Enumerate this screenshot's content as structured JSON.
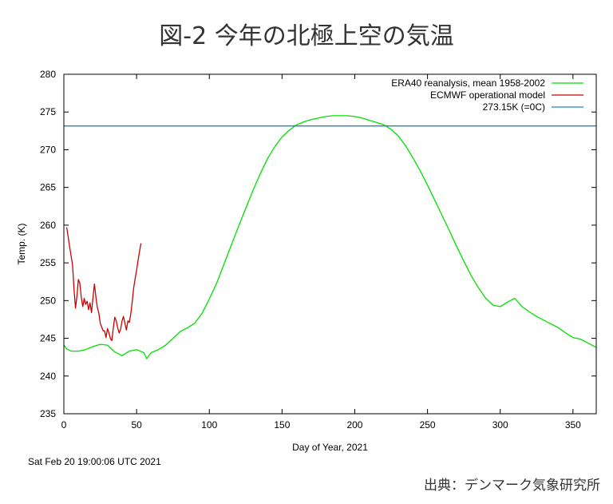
{
  "page": {
    "title": "図-2 今年の北極上空の気温",
    "timestamp": "Sat Feb 20 19:00:06 UTC 2021",
    "source": "出典：デンマーク気象研究所"
  },
  "chart_data": {
    "type": "line",
    "title": "図-2 今年の北極上空の気温",
    "xlabel": "Day of Year, 2021",
    "ylabel": "Temp. (K)",
    "xlim": [
      0,
      366
    ],
    "ylim": [
      235,
      280
    ],
    "xticks": [
      0,
      50,
      100,
      150,
      200,
      250,
      300,
      350
    ],
    "yticks": [
      235,
      240,
      245,
      250,
      255,
      260,
      265,
      270,
      275,
      280
    ],
    "legend_position": "top-right",
    "grid": false,
    "series": [
      {
        "name": "ERA40 reanalysis, mean 1958-2002",
        "color": "#00e000",
        "x": [
          0,
          2,
          5,
          10,
          15,
          20,
          25,
          30,
          35,
          40,
          45,
          50,
          55,
          57,
          60,
          65,
          70,
          75,
          80,
          85,
          90,
          95,
          100,
          105,
          110,
          115,
          120,
          125,
          130,
          135,
          140,
          145,
          150,
          155,
          160,
          165,
          170,
          175,
          180,
          185,
          190,
          195,
          200,
          205,
          210,
          215,
          220,
          225,
          230,
          235,
          240,
          245,
          250,
          255,
          260,
          265,
          270,
          275,
          280,
          285,
          290,
          295,
          300,
          305,
          310,
          315,
          320,
          325,
          330,
          335,
          340,
          345,
          350,
          355,
          360,
          366
        ],
        "values": [
          244.1,
          243.6,
          243.3,
          243.3,
          243.5,
          243.9,
          244.2,
          244.1,
          243.2,
          242.7,
          243.3,
          243.5,
          243.1,
          242.3,
          243.1,
          243.5,
          244.1,
          245.0,
          245.9,
          246.4,
          247.0,
          248.3,
          250.2,
          252.3,
          254.8,
          257.3,
          259.8,
          262.2,
          264.6,
          266.8,
          268.8,
          270.4,
          271.7,
          272.6,
          273.3,
          273.7,
          274.0,
          274.2,
          274.4,
          274.5,
          274.5,
          274.5,
          274.4,
          274.2,
          273.9,
          273.6,
          273.3,
          272.7,
          271.8,
          270.5,
          268.9,
          267.2,
          265.3,
          263.3,
          261.3,
          259.3,
          257.2,
          255.2,
          253.3,
          251.7,
          250.3,
          249.4,
          249.2,
          249.8,
          250.3,
          249.2,
          248.5,
          247.9,
          247.4,
          246.9,
          246.4,
          245.7,
          245.1,
          244.9,
          244.4,
          243.8
        ]
      },
      {
        "name": "ECMWF operational model",
        "color": "#cc0000",
        "x": [
          2,
          4,
          6,
          7,
          8,
          9,
          10,
          11,
          12,
          13,
          14,
          15,
          16,
          17,
          18,
          19,
          20,
          21,
          22,
          23,
          24,
          25,
          26,
          27,
          28,
          29,
          30,
          31,
          32,
          33,
          34,
          35,
          36,
          37,
          38,
          39,
          40,
          41,
          42,
          43,
          44,
          45,
          46,
          47,
          48,
          49,
          50,
          51,
          52,
          53
        ],
        "values": [
          259.7,
          257.1,
          254.7,
          251.4,
          249.0,
          250.6,
          252.8,
          252.3,
          250.4,
          249.2,
          250.3,
          249.5,
          249.9,
          248.8,
          249.7,
          248.4,
          250.3,
          252.2,
          250.5,
          249.1,
          248.4,
          247.0,
          246.5,
          246.0,
          246.0,
          245.1,
          246.3,
          245.7,
          245.0,
          244.7,
          246.4,
          247.8,
          247.3,
          246.4,
          245.7,
          246.2,
          247.3,
          247.9,
          247.0,
          246.1,
          247.3,
          247.1,
          248.2,
          249.9,
          251.7,
          252.9,
          254.0,
          255.3,
          256.5,
          257.6
        ]
      },
      {
        "name": "273.15K (=0C)",
        "color": "#1f82d0",
        "x": [
          0,
          366
        ],
        "values": [
          273.15,
          273.15
        ]
      }
    ]
  }
}
